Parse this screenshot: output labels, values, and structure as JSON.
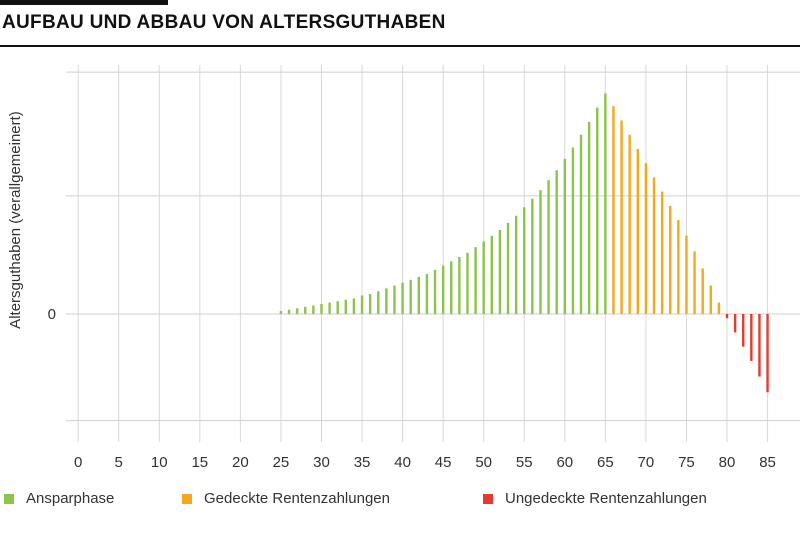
{
  "chart_data": {
    "type": "bar",
    "title": "AUFBAU UND ABBAU VON ALTERSGUTHABEN",
    "ylabel": "Altersguthaben (verallgemeinert)",
    "xlabel": "",
    "x_ticks": [
      "0",
      "5",
      "10",
      "15",
      "20",
      "25",
      "30",
      "35",
      "40",
      "45",
      "50",
      "55",
      "60",
      "65",
      "70",
      "75",
      "80",
      "85"
    ],
    "y_tick_labels": [
      "0"
    ],
    "grid": true,
    "legend_position": "bottom",
    "series": [
      {
        "name": "Ansparphase",
        "color": "#8cc34a",
        "x": [
          25,
          26,
          27,
          28,
          29,
          30,
          31,
          32,
          33,
          34,
          35,
          36,
          37,
          38,
          39,
          40,
          41,
          42,
          43,
          44,
          45,
          46,
          47,
          48,
          49,
          50,
          51,
          52,
          53,
          54,
          55,
          56,
          57,
          58,
          59,
          60,
          61,
          62,
          63,
          64,
          65
        ],
        "values": [
          0.2,
          0.3,
          0.4,
          0.5,
          0.6,
          0.7,
          0.8,
          0.9,
          1.0,
          1.1,
          1.3,
          1.4,
          1.6,
          1.8,
          2.0,
          2.2,
          2.4,
          2.6,
          2.8,
          3.1,
          3.4,
          3.7,
          4.0,
          4.3,
          4.7,
          5.1,
          5.5,
          5.9,
          6.4,
          6.9,
          7.5,
          8.1,
          8.7,
          9.4,
          10.1,
          10.9,
          11.7,
          12.6,
          13.5,
          14.5,
          15.5
        ]
      },
      {
        "name": "Gedeckte Rentenzahlungen",
        "color": "#f5a81c",
        "x": [
          66,
          67,
          68,
          69,
          70,
          71,
          72,
          73,
          74,
          75,
          76,
          77,
          78,
          79
        ],
        "values": [
          14.6,
          13.6,
          12.6,
          11.6,
          10.6,
          9.6,
          8.6,
          7.6,
          6.6,
          5.5,
          4.4,
          3.2,
          2.0,
          0.8
        ]
      },
      {
        "name": "Ungedeckte Rentenzahlungen",
        "color": "#e53a2f",
        "x": [
          80,
          81,
          82,
          83,
          84,
          85
        ],
        "values": [
          -0.3,
          -1.3,
          -2.3,
          -3.3,
          -4.4,
          -5.5
        ]
      }
    ],
    "ylim": [
      -9,
      17.5
    ],
    "xlim": [
      -1.5,
      89
    ]
  }
}
